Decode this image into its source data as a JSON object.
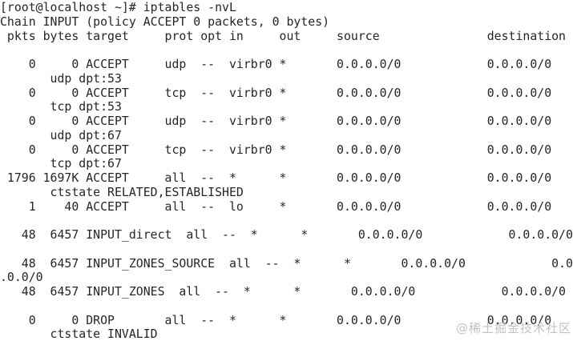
{
  "window": {
    "background": "#ffffff",
    "text_color": "#262626"
  },
  "session": {
    "prompt": "[root@localhost ~]#",
    "command": "iptables -nvL"
  },
  "chain": {
    "name": "INPUT",
    "policy": "ACCEPT",
    "packets": "0",
    "bytes": "0",
    "header_line": "Chain INPUT (policy ACCEPT 0 packets, 0 bytes)"
  },
  "table": {
    "columns": [
      "pkts",
      "bytes",
      "target",
      "prot",
      "opt",
      "in",
      "out",
      "source",
      "destination"
    ],
    "rules": [
      {
        "pkts": "0",
        "bytes": "0",
        "target": "ACCEPT",
        "prot": "udp",
        "opt": "--",
        "in": "virbr0",
        "out": "*",
        "source": "0.0.0.0/0",
        "destination": "0.0.0.0/0",
        "extra": "udp dpt:53"
      },
      {
        "pkts": "0",
        "bytes": "0",
        "target": "ACCEPT",
        "prot": "tcp",
        "opt": "--",
        "in": "virbr0",
        "out": "*",
        "source": "0.0.0.0/0",
        "destination": "0.0.0.0/0",
        "extra": "tcp dpt:53"
      },
      {
        "pkts": "0",
        "bytes": "0",
        "target": "ACCEPT",
        "prot": "udp",
        "opt": "--",
        "in": "virbr0",
        "out": "*",
        "source": "0.0.0.0/0",
        "destination": "0.0.0.0/0",
        "extra": "udp dpt:67"
      },
      {
        "pkts": "0",
        "bytes": "0",
        "target": "ACCEPT",
        "prot": "tcp",
        "opt": "--",
        "in": "virbr0",
        "out": "*",
        "source": "0.0.0.0/0",
        "destination": "0.0.0.0/0",
        "extra": "tcp dpt:67"
      },
      {
        "pkts": "1796",
        "bytes": "1697K",
        "target": "ACCEPT",
        "prot": "all",
        "opt": "--",
        "in": "*",
        "out": "*",
        "source": "0.0.0.0/0",
        "destination": "0.0.0.0/0",
        "extra": "ctstate RELATED,ESTABLISHED"
      },
      {
        "pkts": "1",
        "bytes": "40",
        "target": "ACCEPT",
        "prot": "all",
        "opt": "--",
        "in": "lo",
        "out": "*",
        "source": "0.0.0.0/0",
        "destination": "0.0.0.0/0",
        "extra": ""
      },
      {
        "pkts": "48",
        "bytes": "6457",
        "target": "INPUT_direct",
        "prot": "all",
        "opt": "--",
        "in": "*",
        "out": "*",
        "source": "0.0.0.0/0",
        "destination": "0.0.0.0/0",
        "extra": ""
      },
      {
        "pkts": "48",
        "bytes": "6457",
        "target": "INPUT_ZONES_SOURCE",
        "prot": "all",
        "opt": "--",
        "in": "*",
        "out": "*",
        "source": "0.0.0.0/0",
        "destination": "0.0.0.0/0",
        "extra": ""
      },
      {
        "pkts": "48",
        "bytes": "6457",
        "target": "INPUT_ZONES",
        "prot": "all",
        "opt": "--",
        "in": "*",
        "out": "*",
        "source": "0.0.0.0/0",
        "destination": "0.0.0.0/0",
        "extra": ""
      },
      {
        "pkts": "0",
        "bytes": "0",
        "target": "DROP",
        "prot": "all",
        "opt": "--",
        "in": "*",
        "out": "*",
        "source": "0.0.0.0/0",
        "destination": "0.0.0.0/0",
        "extra": "ctstate INVALID"
      }
    ]
  },
  "terminal": {
    "lines": [
      "[root@localhost ~]# iptables -nvL",
      "Chain INPUT (policy ACCEPT 0 packets, 0 bytes)",
      " pkts bytes target     prot opt in     out     source               destination",
      "",
      "    0     0 ACCEPT     udp  --  virbr0 *       0.0.0.0/0            0.0.0.0/0",
      "       udp dpt:53",
      "    0     0 ACCEPT     tcp  --  virbr0 *       0.0.0.0/0            0.0.0.0/0",
      "       tcp dpt:53",
      "    0     0 ACCEPT     udp  --  virbr0 *       0.0.0.0/0            0.0.0.0/0",
      "       udp dpt:67",
      "    0     0 ACCEPT     tcp  --  virbr0 *       0.0.0.0/0            0.0.0.0/0",
      "       tcp dpt:67",
      " 1796 1697K ACCEPT     all  --  *      *       0.0.0.0/0            0.0.0.0/0",
      "       ctstate RELATED,ESTABLISHED",
      "    1    40 ACCEPT     all  --  lo     *       0.0.0.0/0            0.0.0.0/0",
      "",
      "   48  6457 INPUT_direct  all  --  *      *       0.0.0.0/0            0.0.0.0/0",
      "",
      "   48  6457 INPUT_ZONES_SOURCE  all  --  *      *       0.0.0.0/0            0.0",
      ".0.0/0",
      "   48  6457 INPUT_ZONES  all  --  *      *       0.0.0.0/0            0.0.0.0/0",
      "",
      "    0     0 DROP       all  --  *      *       0.0.0.0/0            0.0.0.0/0",
      "       ctstate INVALID"
    ]
  },
  "watermark": {
    "text": "@稀土掘金技术社区",
    "color": "#c2c2c2"
  }
}
